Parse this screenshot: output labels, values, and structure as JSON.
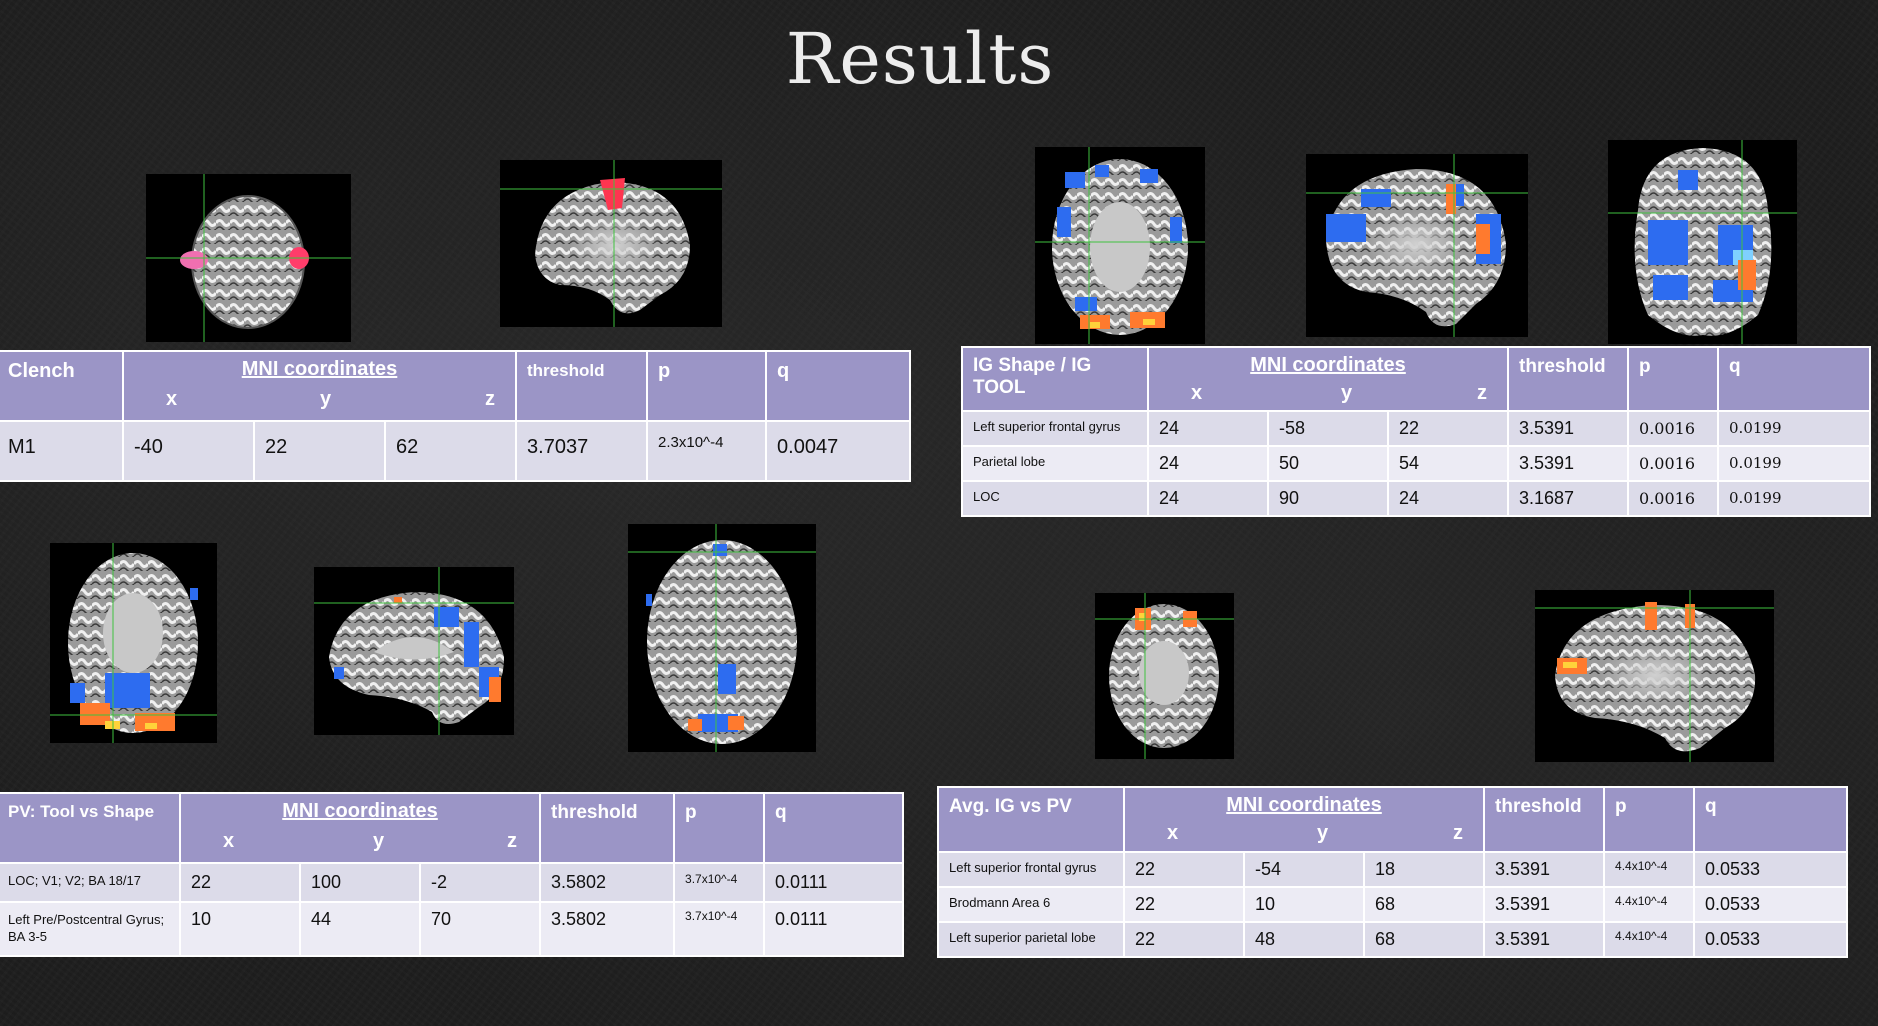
{
  "title": "Results",
  "colors": {
    "header_bg": "#9b95c6",
    "row_bg": "#dcdbe9",
    "row_bg_alt": "#ecebf4",
    "background": "#1e1e1e"
  },
  "tables": {
    "clench": {
      "contrast": "Clench",
      "mni_label": "MNI coordinates",
      "axes": {
        "x": "x",
        "y": "y",
        "z": "z"
      },
      "threshold_label": "threshold",
      "p_label": "p",
      "q_label": "q",
      "rows": [
        {
          "region": "M1",
          "x": "-40",
          "y": "22",
          "z": "62",
          "threshold": "3.7037",
          "p": "2.3x10^-4",
          "q": "0.0047"
        }
      ]
    },
    "ig_shape_tool": {
      "contrast": "IG Shape / IG TOOL",
      "mni_label": "MNI coordinates",
      "axes": {
        "x": "x",
        "y": "y",
        "z": "z"
      },
      "threshold_label": "threshold",
      "p_label": "p",
      "q_label": "q",
      "rows": [
        {
          "region": "Left superior frontal gyrus",
          "x": "24",
          "y": "-58",
          "z": "22",
          "threshold": "3.5391",
          "p": "0.0016",
          "q": "0.0199"
        },
        {
          "region": "Parietal lobe",
          "x": "24",
          "y": "50",
          "z": "54",
          "threshold": "3.5391",
          "p": "0.0016",
          "q": "0.0199"
        },
        {
          "region": "LOC",
          "x": "24",
          "y": "90",
          "z": "24",
          "threshold": "3.1687",
          "p": "0.0016",
          "q": "0.0199"
        }
      ]
    },
    "pv_tool_shape": {
      "contrast": "PV: Tool vs Shape",
      "mni_label": "MNI coordinates",
      "axes": {
        "x": "x",
        "y": "y",
        "z": "z"
      },
      "threshold_label": "threshold",
      "p_label": "p",
      "q_label": "q",
      "rows": [
        {
          "region": "LOC; V1; V2; BA 18/17",
          "x": "22",
          "y": "100",
          "z": "-2",
          "threshold": "3.5802",
          "p": "3.7x10^-4",
          "q": "0.0111"
        },
        {
          "region": "Left Pre/Postcentral Gyrus; BA 3-5",
          "x": "10",
          "y": "44",
          "z": "70",
          "threshold": "3.5802",
          "p": "3.7x10^-4",
          "q": "0.0111"
        }
      ]
    },
    "avg_ig_pv": {
      "contrast": "Avg. IG vs PV",
      "mni_label": "MNI coordinates",
      "axes": {
        "x": "x",
        "y": "y",
        "z": "z"
      },
      "threshold_label": "threshold",
      "p_label": "p",
      "q_label": "q",
      "rows": [
        {
          "region": "Left superior frontal gyrus",
          "x": "22",
          "y": "-54",
          "z": "18",
          "threshold": "3.5391",
          "p": "4.4x10^-4",
          "q": "0.0533"
        },
        {
          "region": "Brodmann Area 6",
          "x": "22",
          "y": "10",
          "z": "68",
          "threshold": "3.5391",
          "p": "4.4x10^-4",
          "q": "0.0533"
        },
        {
          "region": "Left superior parietal lobe",
          "x": "22",
          "y": "48",
          "z": "68",
          "threshold": "3.5391",
          "p": "4.4x10^-4",
          "q": "0.0533"
        }
      ]
    }
  }
}
